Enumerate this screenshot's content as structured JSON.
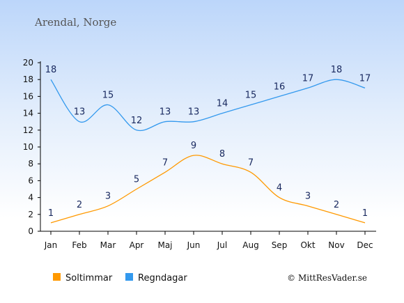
{
  "chart_data": {
    "type": "line",
    "title": "Arendal, Norge",
    "categories": [
      "Jan",
      "Feb",
      "Mar",
      "Apr",
      "Maj",
      "Jun",
      "Jul",
      "Aug",
      "Sep",
      "Okt",
      "Nov",
      "Dec"
    ],
    "ylim": [
      0,
      20
    ],
    "yticks": [
      "0",
      "2",
      "4",
      "6",
      "8",
      "10",
      "12",
      "14",
      "16",
      "18",
      "20"
    ],
    "grid": false,
    "legend_position": "bottom-left",
    "series": [
      {
        "name": "Soltimmar",
        "color": "#ff9900",
        "values": [
          1,
          2,
          3,
          5,
          7,
          9,
          8,
          7,
          4,
          3,
          2,
          1
        ]
      },
      {
        "name": "Regndagar",
        "color": "#3399ee",
        "values": [
          18,
          13,
          15,
          12,
          13,
          13,
          14,
          15,
          16,
          17,
          18,
          17
        ]
      }
    ],
    "credit": "© MittResVader.se"
  }
}
